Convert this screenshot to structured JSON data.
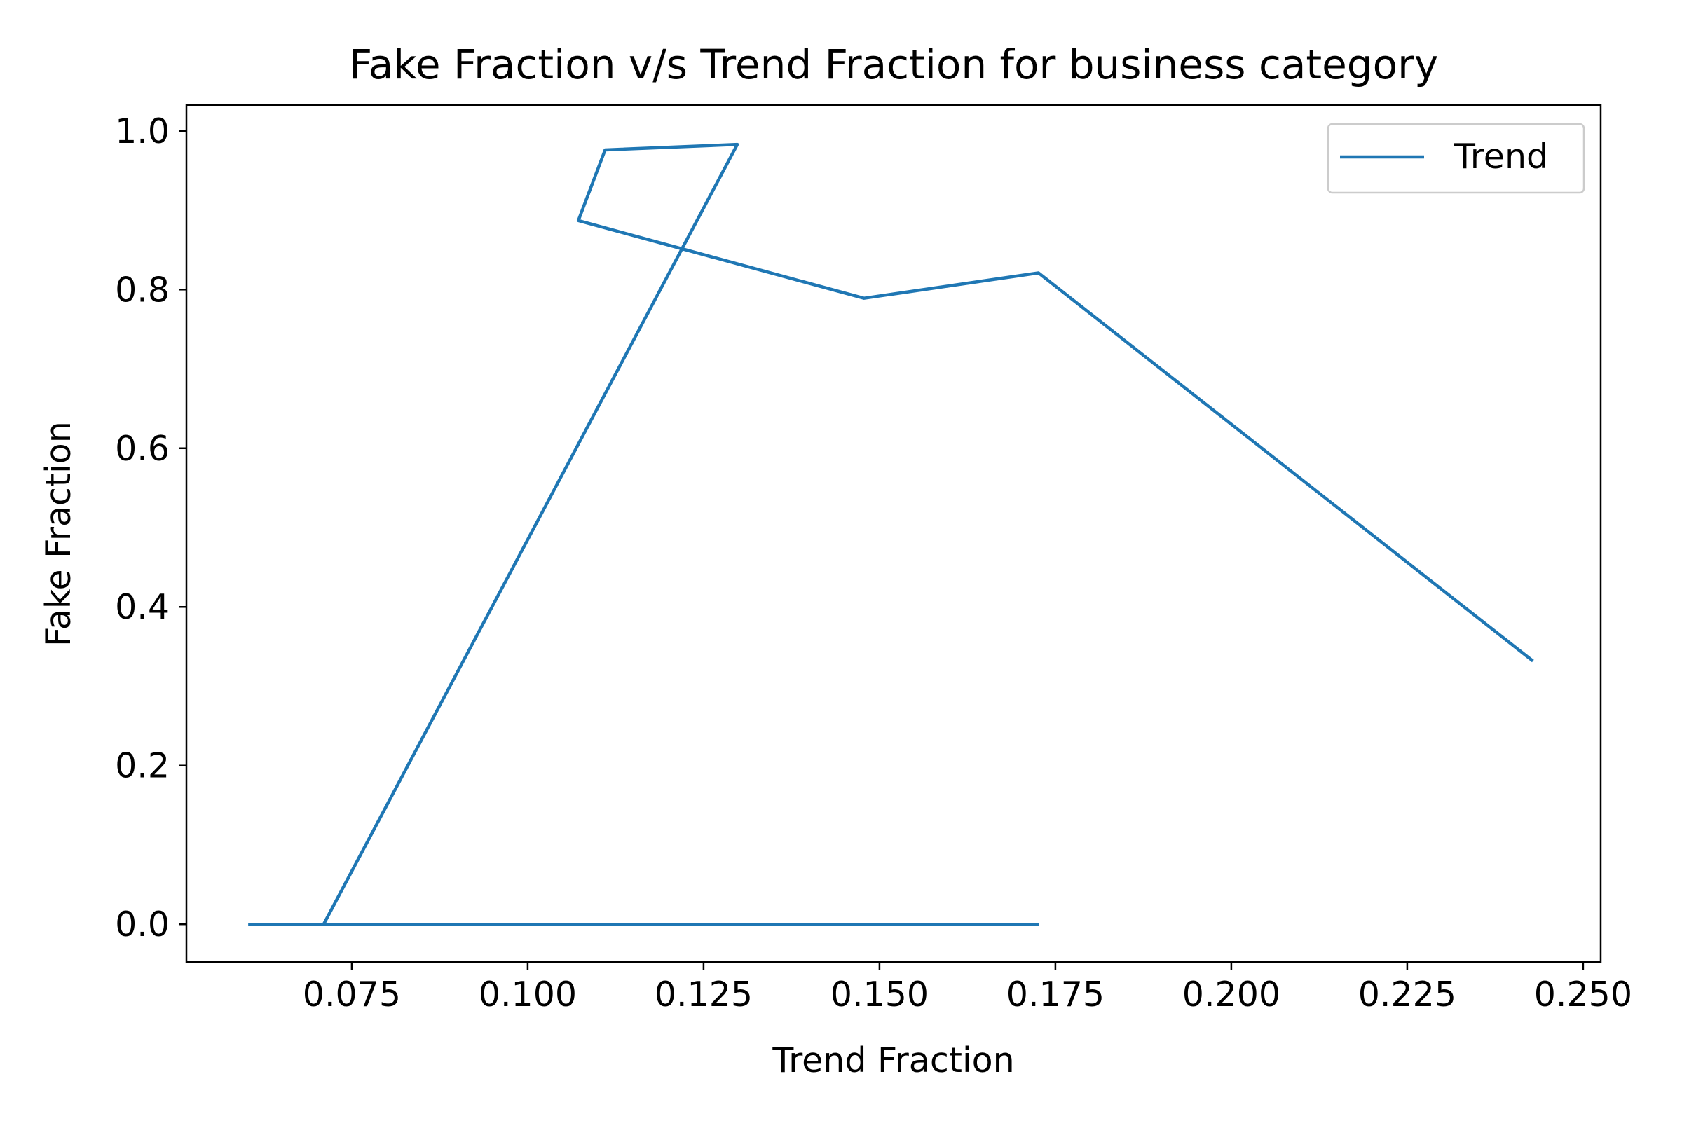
{
  "chart_data": {
    "type": "line",
    "title": "Fake Fraction v/s Trend Fraction for business category",
    "xlabel": "Trend Fraction",
    "ylabel": "Fake Fraction",
    "xlim": [
      0.0515,
      0.2525
    ],
    "ylim": [
      -0.0475,
      1.0325
    ],
    "xticks": [
      0.075,
      0.1,
      0.125,
      0.15,
      0.175,
      0.2,
      0.225,
      0.25
    ],
    "xtick_labels": [
      "0.075",
      "0.100",
      "0.125",
      "0.150",
      "0.175",
      "0.200",
      "0.225",
      "0.250"
    ],
    "yticks": [
      0.0,
      0.2,
      0.4,
      0.6,
      0.8,
      1.0
    ],
    "ytick_labels": [
      "0.0",
      "0.2",
      "0.4",
      "0.6",
      "0.8",
      "1.0"
    ],
    "grid": false,
    "legend_position": "top-right",
    "series": [
      {
        "name": "Trend",
        "color": "#1f77b4",
        "x": [
          0.0605,
          0.071,
          0.091,
          0.1725,
          0.071,
          0.1298,
          0.111,
          0.1072,
          0.1478,
          0.1726,
          0.2427
        ],
        "y": [
          0.0,
          0.0,
          0.0,
          0.0,
          0.0,
          0.983,
          0.976,
          0.887,
          0.789,
          0.821,
          0.333
        ]
      }
    ]
  }
}
